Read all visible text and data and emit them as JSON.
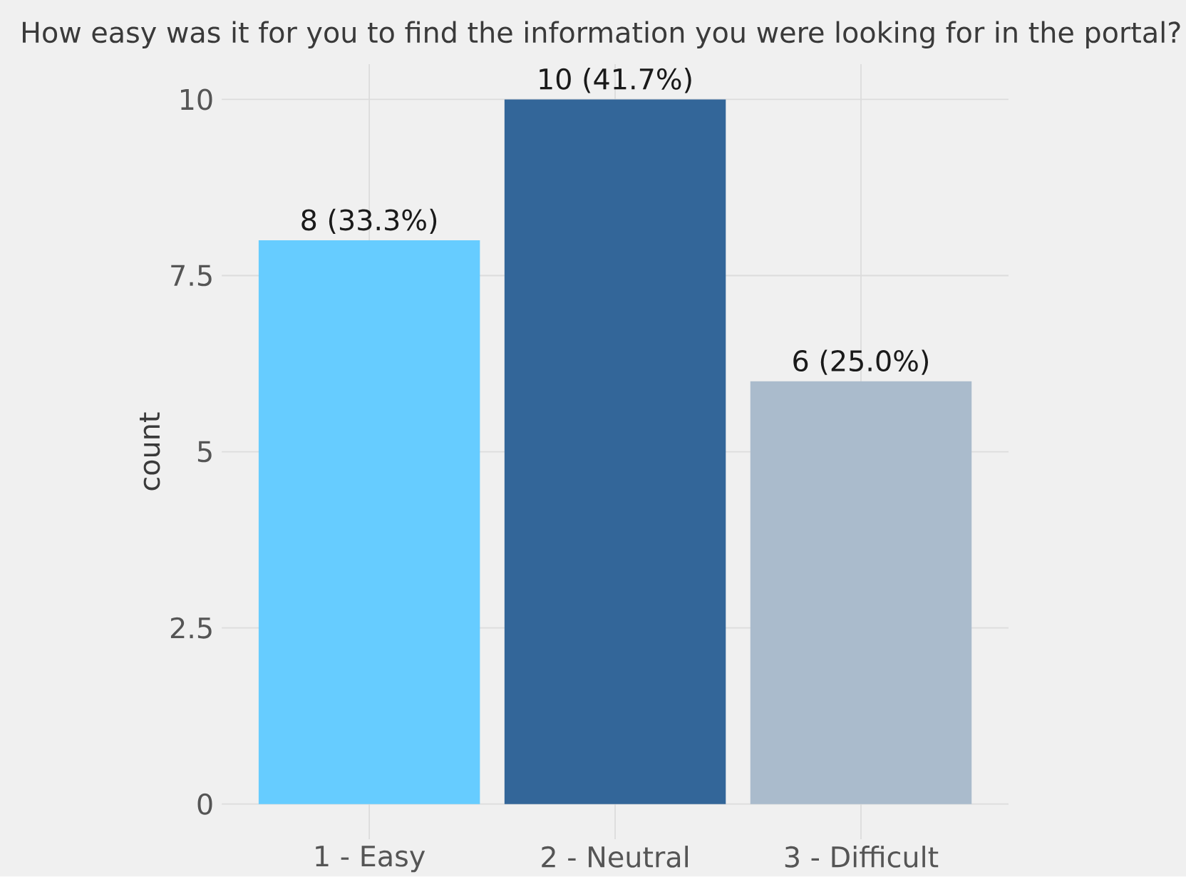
{
  "chart_data": {
    "type": "bar",
    "title": "How easy was it for you to find the information you were looking for in the portal?",
    "ylabel": "count",
    "categories": [
      "1 - Easy",
      "2 - Neutral",
      "3 - Difficult"
    ],
    "values": [
      8,
      10,
      6
    ],
    "colors": [
      "#66ccff",
      "#336699",
      "#aabbcc"
    ],
    "value_labels": [
      "8 (33.3%)",
      "10 (41.7%)",
      "6 (25.0%)"
    ],
    "ylim": [
      -0.5,
      10.5
    ],
    "yticks": [
      0,
      2.5,
      5,
      7.5,
      10
    ],
    "grid": true
  }
}
